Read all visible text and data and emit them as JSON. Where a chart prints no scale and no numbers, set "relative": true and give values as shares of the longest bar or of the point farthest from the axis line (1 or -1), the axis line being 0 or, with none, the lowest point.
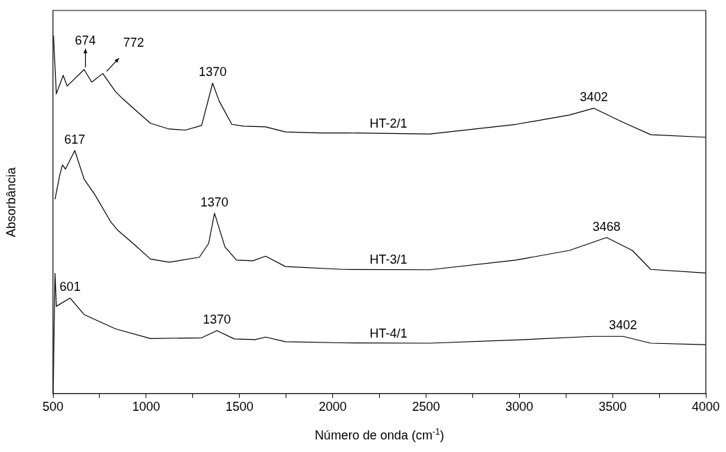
{
  "chart_data": {
    "type": "line",
    "relative": true,
    "xlabel": "Número de onda (cm$^{-1}$)",
    "ylabel": "Absorbância",
    "xlim": [
      500,
      4000
    ],
    "xticks": [
      500,
      {
        "value": 750,
        "label": null
      },
      1000,
      {
        "value": 1250,
        "label": null
      },
      1500,
      {
        "value": 1750,
        "label": null
      },
      2000,
      {
        "value": 2250,
        "label": null
      },
      2500,
      {
        "value": 2750,
        "label": null
      },
      3000,
      {
        "value": 3250,
        "label": null
      },
      3500,
      {
        "value": 3750,
        "label": null
      },
      4000
    ],
    "grid": false,
    "legend": false,
    "marker": "none",
    "line_style": "solid",
    "series": [
      {
        "name": "HT-2/1",
        "color": "#000000",
        "x": [
          503,
          518,
          555,
          576,
          667,
          708,
          767,
          836,
          873,
          942,
          1023,
          1123,
          1210,
          1297,
          1356,
          1391,
          1459,
          1522,
          1640,
          1746,
          1934,
          2083,
          2520,
          2982,
          3269,
          3400,
          3556,
          3705,
          3999
        ],
        "values": [
          1.0,
          0.837,
          0.889,
          0.859,
          0.905,
          0.87,
          0.894,
          0.843,
          0.824,
          0.792,
          0.755,
          0.739,
          0.736,
          0.749,
          0.867,
          0.817,
          0.752,
          0.747,
          0.745,
          0.731,
          0.728,
          0.728,
          0.725,
          0.752,
          0.778,
          0.797,
          0.758,
          0.723,
          0.716
        ]
      },
      {
        "name": "HT-3/1",
        "color": "#000000",
        "x": [
          511,
          536,
          551,
          567,
          617,
          667,
          723,
          811,
          848,
          935,
          1023,
          1123,
          1285,
          1335,
          1366,
          1422,
          1484,
          1572,
          1640,
          1746,
          2058,
          2520,
          2982,
          3269,
          3468,
          3606,
          3705,
          3999
        ],
        "values": [
          0.543,
          0.609,
          0.639,
          0.627,
          0.679,
          0.599,
          0.557,
          0.479,
          0.456,
          0.417,
          0.376,
          0.367,
          0.381,
          0.42,
          0.504,
          0.41,
          0.373,
          0.371,
          0.384,
          0.355,
          0.347,
          0.346,
          0.373,
          0.4,
          0.436,
          0.4,
          0.347,
          0.337
        ]
      },
      {
        "name": "HT-4/1",
        "color": "#000000",
        "x": [
          501,
          511,
          518,
          592,
          667,
          836,
          1023,
          1297,
          1379,
          1472,
          1584,
          1640,
          1746,
          2058,
          2520,
          2982,
          3393,
          3556,
          3705,
          3999
        ],
        "values": [
          0.0,
          0.336,
          0.244,
          0.267,
          0.221,
          0.181,
          0.154,
          0.156,
          0.176,
          0.153,
          0.151,
          0.158,
          0.145,
          0.142,
          0.141,
          0.15,
          0.16,
          0.16,
          0.141,
          0.137
        ]
      }
    ],
    "annotations": [
      {
        "text": "674",
        "x": 674,
        "y": 0.905
      },
      {
        "text": "772",
        "x": 772,
        "y": 0.894
      },
      {
        "text": "1370",
        "x": 1356,
        "y": 0.867
      },
      {
        "text": "3402",
        "x": 3400,
        "y": 0.797
      },
      {
        "text": "617",
        "x": 617,
        "y": 0.679
      },
      {
        "text": "1370",
        "x": 1366,
        "y": 0.504
      },
      {
        "text": "3468",
        "x": 3468,
        "y": 0.436
      },
      {
        "text": "601",
        "x": 592,
        "y": 0.267
      },
      {
        "text": "1370",
        "x": 1379,
        "y": 0.176
      },
      {
        "text": "3402",
        "x": 3556,
        "y": 0.16
      }
    ]
  }
}
